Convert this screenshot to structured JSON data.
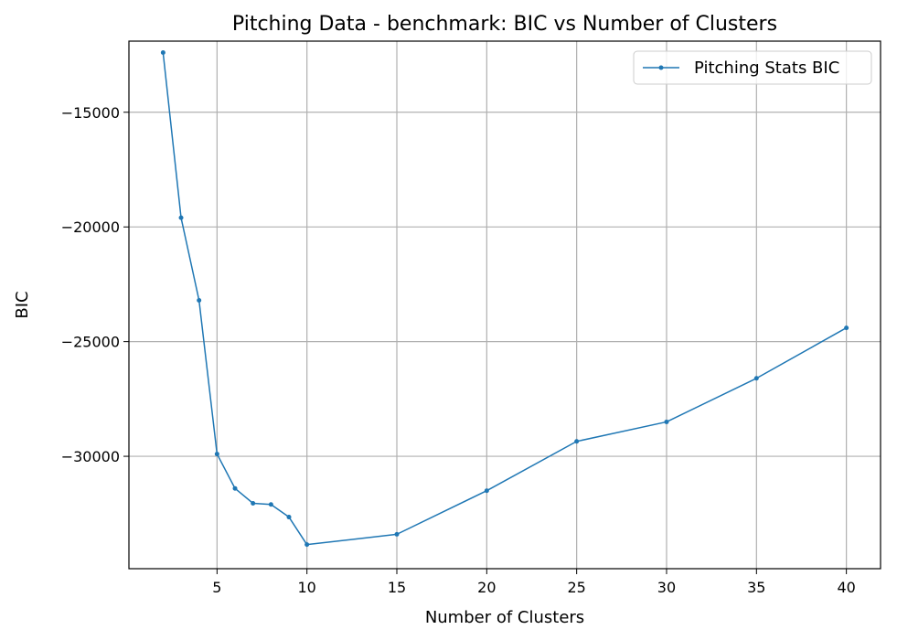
{
  "chart_data": {
    "type": "line",
    "title": "Pitching Data - benchmark: BIC vs Number of Clusters",
    "xlabel": "Number of Clusters",
    "ylabel": "BIC",
    "xlim": [
      0.1,
      41.9
    ],
    "ylim": [
      -34900,
      -11900
    ],
    "xticks": [
      5,
      10,
      15,
      20,
      25,
      30,
      35,
      40
    ],
    "xtick_labels": [
      "5",
      "10",
      "15",
      "20",
      "25",
      "30",
      "35",
      "40"
    ],
    "yticks": [
      -30000,
      -25000,
      -20000,
      -15000
    ],
    "ytick_labels": [
      "−30000",
      "−25000",
      "−20000",
      "−15000"
    ],
    "grid": true,
    "legend_position": "top-right",
    "series": [
      {
        "name": "Pitching Stats BIC",
        "color": "#1f77b4",
        "marker": "circle",
        "x": [
          2,
          3,
          4,
          5,
          6,
          7,
          8,
          9,
          10,
          15,
          20,
          25,
          30,
          35,
          40
        ],
        "y": [
          -12400,
          -19600,
          -23200,
          -29900,
          -31400,
          -32050,
          -32100,
          -32650,
          -33850,
          -33400,
          -31500,
          -29350,
          -28500,
          -26600,
          -24400
        ]
      }
    ]
  }
}
